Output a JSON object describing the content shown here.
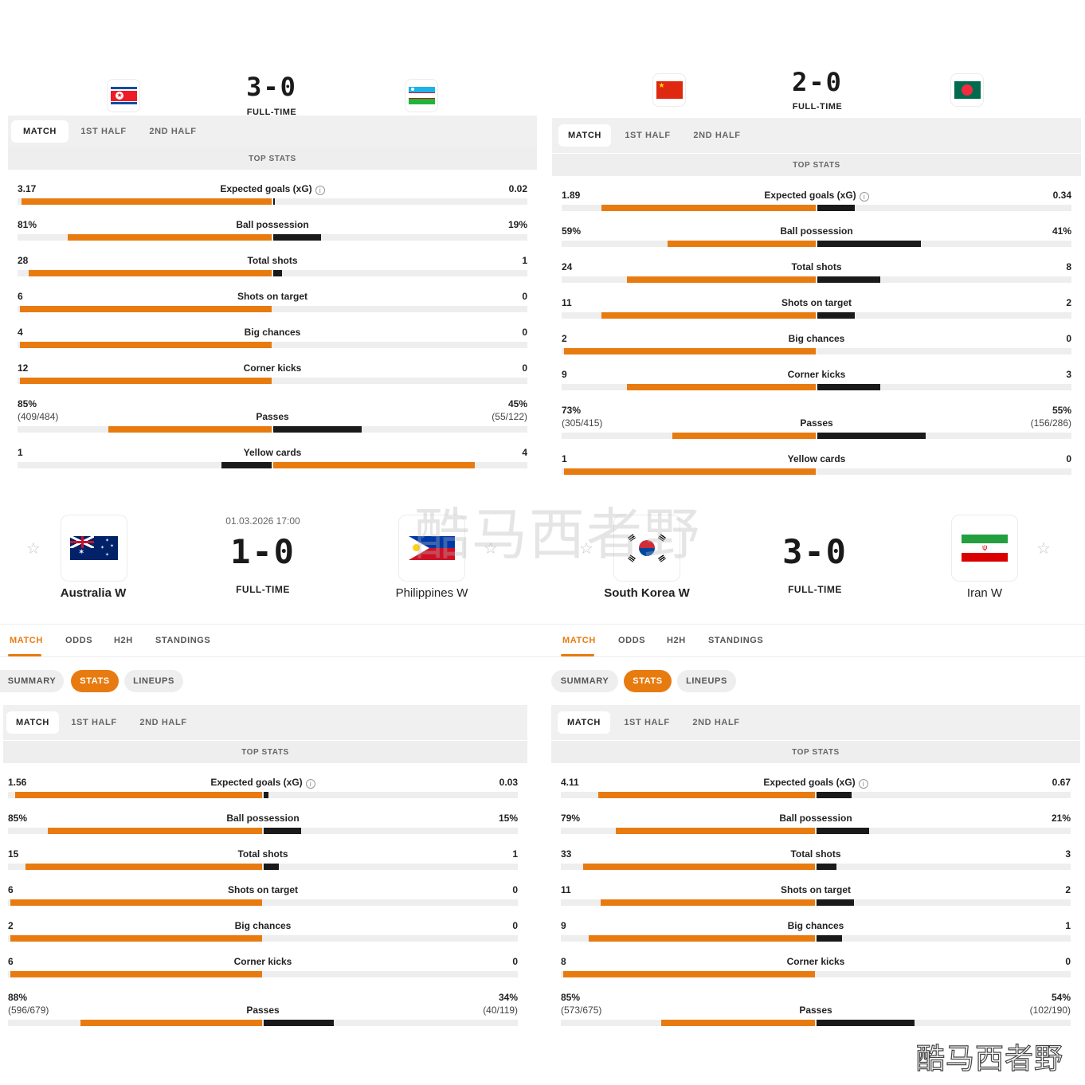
{
  "panels": [
    {
      "id": "p1",
      "score": "3-0",
      "status": "FULL-TIME",
      "home_flag": "north-korea",
      "away_flag": "uzbekistan",
      "period_tabs": [
        "MATCH",
        "1ST HALF",
        "2ND HALF"
      ],
      "top_stats_label": "TOP STATS",
      "stats": [
        {
          "label": "Expected goals (xG)",
          "home": "3.17",
          "away": "0.02",
          "info": true,
          "home_share": 0.994,
          "away_share": 0.006
        },
        {
          "label": "Ball possession",
          "home": "81%",
          "away": "19%",
          "home_share": 0.81,
          "away_share": 0.19
        },
        {
          "label": "Total shots",
          "home": "28",
          "away": "1",
          "home_share": 0.966,
          "away_share": 0.034
        },
        {
          "label": "Shots on target",
          "home": "6",
          "away": "0",
          "home_share": 1,
          "away_share": 0
        },
        {
          "label": "Big chances",
          "home": "4",
          "away": "0",
          "home_share": 1,
          "away_share": 0
        },
        {
          "label": "Corner kicks",
          "home": "12",
          "away": "0",
          "home_share": 1,
          "away_share": 0
        },
        {
          "label": "Passes",
          "home": "85%",
          "away": "45%",
          "home_sub": "(409/484)",
          "away_sub": "(55/122)",
          "home_share": 0.65,
          "away_share": 0.35
        },
        {
          "label": "Yellow cards",
          "home": "1",
          "away": "4",
          "home_share": 0.2,
          "away_share": 0.8,
          "away_highlight": true
        }
      ]
    },
    {
      "id": "p2",
      "score": "2-0",
      "status": "FULL-TIME",
      "home_flag": "china",
      "away_flag": "bangladesh",
      "period_tabs": [
        "MATCH",
        "1ST HALF",
        "2ND HALF"
      ],
      "top_stats_label": "TOP STATS",
      "stats": [
        {
          "label": "Expected goals (xG)",
          "home": "1.89",
          "away": "0.34",
          "info": true,
          "home_share": 0.85,
          "away_share": 0.15
        },
        {
          "label": "Ball possession",
          "home": "59%",
          "away": "41%",
          "home_share": 0.59,
          "away_share": 0.41
        },
        {
          "label": "Total shots",
          "home": "24",
          "away": "8",
          "home_share": 0.75,
          "away_share": 0.25
        },
        {
          "label": "Shots on target",
          "home": "11",
          "away": "2",
          "home_share": 0.85,
          "away_share": 0.15
        },
        {
          "label": "Big chances",
          "home": "2",
          "away": "0",
          "home_share": 1,
          "away_share": 0
        },
        {
          "label": "Corner kicks",
          "home": "9",
          "away": "3",
          "home_share": 0.75,
          "away_share": 0.25
        },
        {
          "label": "Passes",
          "home": "73%",
          "away": "55%",
          "home_sub": "(305/415)",
          "away_sub": "(156/286)",
          "home_share": 0.57,
          "away_share": 0.43
        },
        {
          "label": "Yellow cards",
          "home": "1",
          "away": "0",
          "home_share": 1,
          "away_share": 0
        }
      ]
    },
    {
      "id": "p3",
      "date": "01.03.2026 17:00",
      "score": "1-0",
      "status": "FULL-TIME",
      "home_name": "Australia W",
      "away_name": "Philippines W",
      "home_flag": "australia",
      "away_flag": "philippines",
      "nav_tabs": [
        "MATCH",
        "ODDS",
        "H2H",
        "STANDINGS"
      ],
      "sub_tabs": [
        "SUMMARY",
        "STATS",
        "LINEUPS"
      ],
      "period_tabs": [
        "MATCH",
        "1ST HALF",
        "2ND HALF"
      ],
      "top_stats_label": "TOP STATS",
      "stats": [
        {
          "label": "Expected goals (xG)",
          "home": "1.56",
          "away": "0.03",
          "info": true,
          "home_share": 0.98,
          "away_share": 0.02
        },
        {
          "label": "Ball possession",
          "home": "85%",
          "away": "15%",
          "home_share": 0.85,
          "away_share": 0.15
        },
        {
          "label": "Total shots",
          "home": "15",
          "away": "1",
          "home_share": 0.94,
          "away_share": 0.06
        },
        {
          "label": "Shots on target",
          "home": "6",
          "away": "0",
          "home_share": 1,
          "away_share": 0
        },
        {
          "label": "Big chances",
          "home": "2",
          "away": "0",
          "home_share": 1,
          "away_share": 0
        },
        {
          "label": "Corner kicks",
          "home": "6",
          "away": "0",
          "home_share": 1,
          "away_share": 0
        },
        {
          "label": "Passes",
          "home": "88%",
          "away": "34%",
          "home_sub": "(596/679)",
          "away_sub": "(40/119)",
          "home_share": 0.72,
          "away_share": 0.28
        }
      ]
    },
    {
      "id": "p4",
      "score": "3-0",
      "status": "FULL-TIME",
      "home_name": "South Korea W",
      "away_name": "Iran W",
      "home_flag": "south-korea",
      "away_flag": "iran",
      "nav_tabs": [
        "MATCH",
        "ODDS",
        "H2H",
        "STANDINGS"
      ],
      "sub_tabs": [
        "SUMMARY",
        "STATS",
        "LINEUPS"
      ],
      "period_tabs": [
        "MATCH",
        "1ST HALF",
        "2ND HALF"
      ],
      "top_stats_label": "TOP STATS",
      "stats": [
        {
          "label": "Expected goals (xG)",
          "home": "4.11",
          "away": "0.67",
          "info": true,
          "home_share": 0.86,
          "away_share": 0.14
        },
        {
          "label": "Ball possession",
          "home": "79%",
          "away": "21%",
          "home_share": 0.79,
          "away_share": 0.21
        },
        {
          "label": "Total shots",
          "home": "33",
          "away": "3",
          "home_share": 0.92,
          "away_share": 0.08
        },
        {
          "label": "Shots on target",
          "home": "11",
          "away": "2",
          "home_share": 0.85,
          "away_share": 0.15
        },
        {
          "label": "Big chances",
          "home": "9",
          "away": "1",
          "home_share": 0.9,
          "away_share": 0.1
        },
        {
          "label": "Corner kicks",
          "home": "8",
          "away": "0",
          "home_share": 1,
          "away_share": 0
        },
        {
          "label": "Passes",
          "home": "85%",
          "away": "54%",
          "home_sub": "(573/675)",
          "away_sub": "(102/190)",
          "home_share": 0.61,
          "away_share": 0.39
        }
      ]
    }
  ],
  "watermark_center": "酷马西者野",
  "watermark_corner": "酷马西者野",
  "colors": {
    "accent": "#e87b10",
    "dark_bar": "#1a1a1a",
    "track": "#eeeeee"
  }
}
